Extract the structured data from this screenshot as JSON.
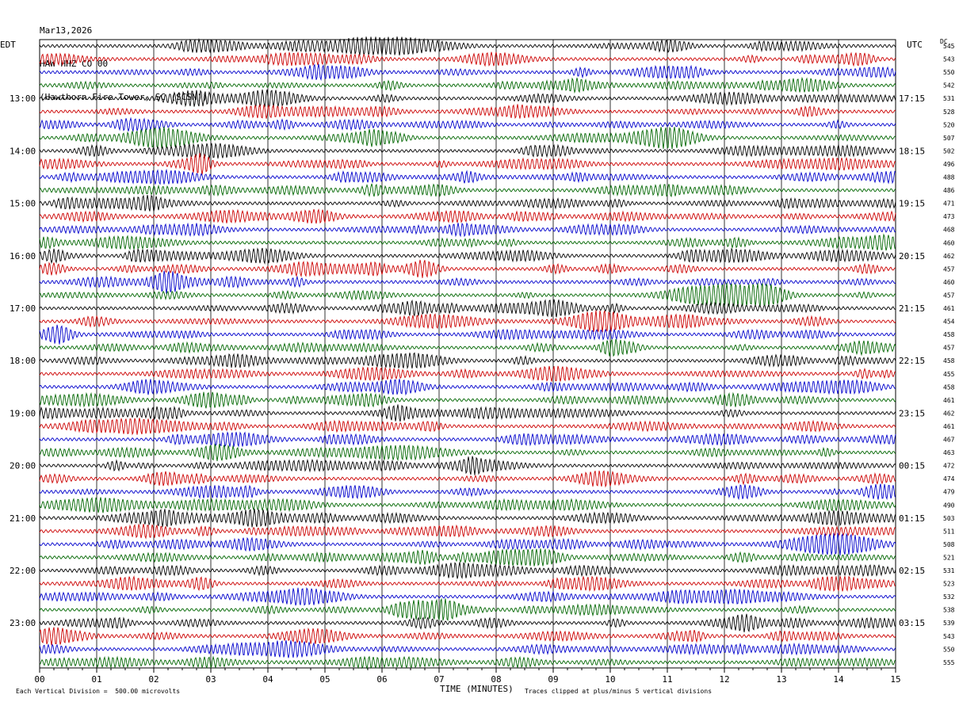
{
  "header": {
    "date": "Mar13,2026",
    "station": "HAW HHZ CO 00",
    "location": "(Hawthorn Fire Tower, SC (SCSN))"
  },
  "left_timezone": "EDT",
  "right_timezone": "UTC",
  "dc_label": "DC",
  "footer": {
    "scale_note": "Each Vertical Division =  500.00 microvolts",
    "xlabel": "TIME (MINUTES)",
    "clip_note": "Traces clipped at plus/minus 5 vertical divisions"
  },
  "colors": {
    "trace_cycle": [
      "#000000",
      "#cc0000",
      "#0000cc",
      "#006600"
    ],
    "grid": "#000000"
  },
  "chart_data": {
    "type": "line",
    "title": "HAW HHZ CO 00",
    "xlabel": "TIME (MINUTES)",
    "ylabel": "",
    "xlim": [
      0,
      15
    ],
    "x_ticks": [
      "00",
      "01",
      "02",
      "03",
      "04",
      "05",
      "06",
      "07",
      "08",
      "09",
      "10",
      "11",
      "12",
      "13",
      "14",
      "15"
    ],
    "row_count": 48,
    "rows_per_hour": 4,
    "left_time_labels": [
      "13:00",
      "14:00",
      "15:00",
      "16:00",
      "17:00",
      "18:00",
      "19:00",
      "20:00",
      "21:00",
      "22:00",
      "23:00"
    ],
    "right_time_labels": [
      "17:15",
      "18:15",
      "19:15",
      "20:15",
      "21:15",
      "22:15",
      "23:15",
      "00:15",
      "01:15",
      "02:15",
      "03:15"
    ],
    "label_row_start": 4,
    "dc_offsets": [
      545,
      543,
      550,
      542,
      531,
      528,
      520,
      507,
      502,
      496,
      488,
      486,
      471,
      473,
      468,
      460,
      462,
      457,
      460,
      457,
      461,
      454,
      458,
      457,
      458,
      455,
      458,
      461,
      462,
      461,
      467,
      463,
      472,
      474,
      479,
      490,
      503,
      511,
      508,
      521,
      531,
      523,
      532,
      538,
      539,
      543,
      550,
      555
    ],
    "microvolts_per_division": 500.0,
    "clip_divisions": 5
  }
}
